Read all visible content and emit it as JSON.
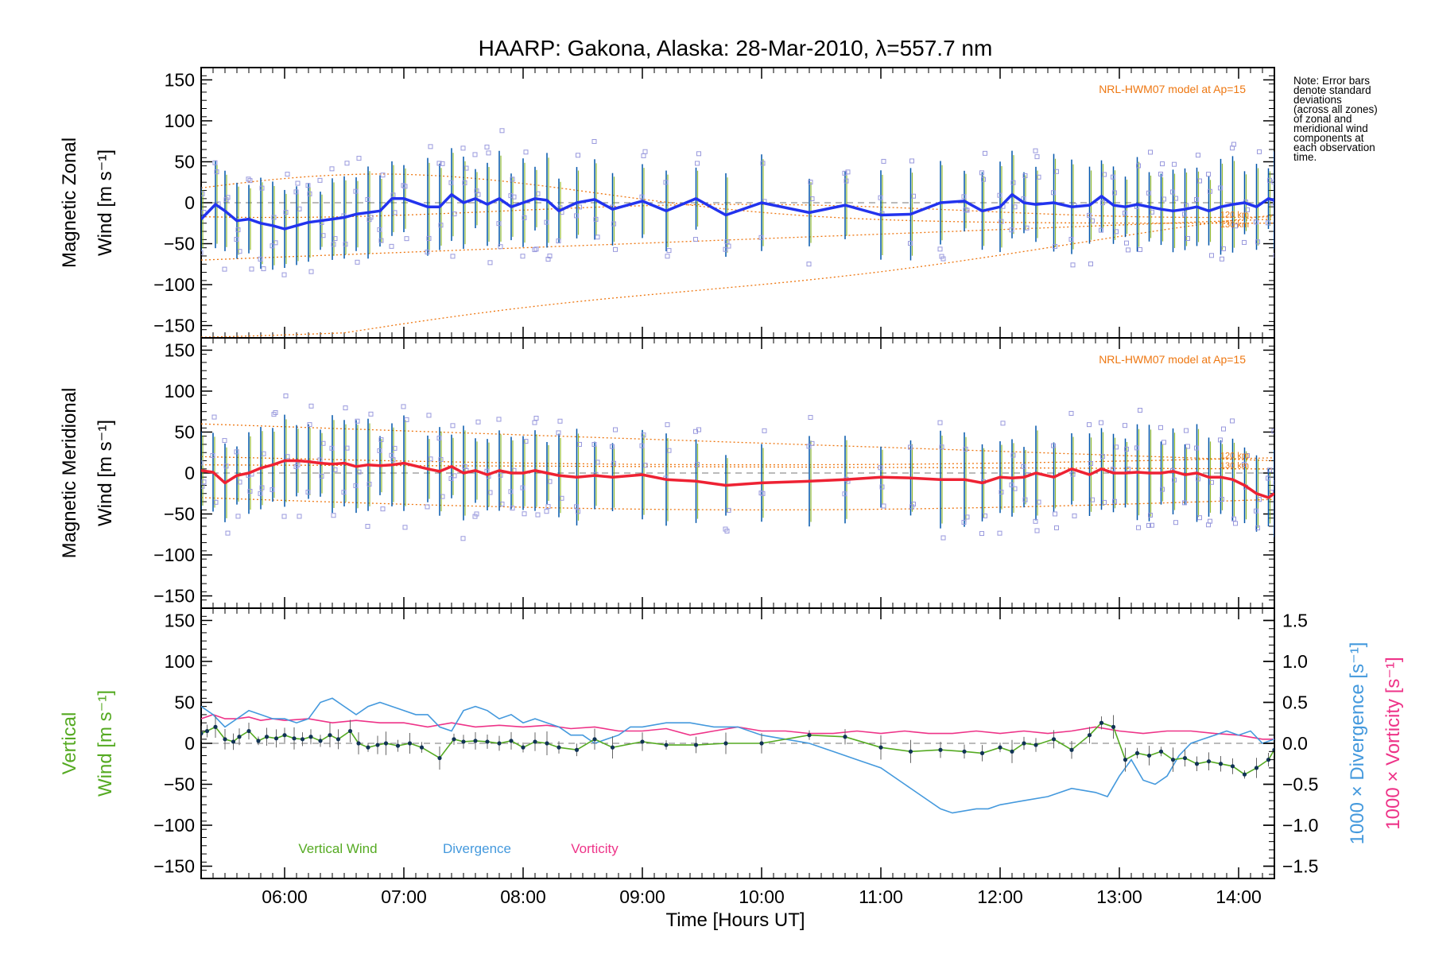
{
  "title": "HAARP: Gakona,  Alaska: 28-Mar-2010, λ=557.7 nm",
  "note_lines": [
    "Note: Error bars",
    "denote standard",
    "deviations",
    "(across all zones)",
    "of zonal and",
    "meridional wind",
    "components at",
    "each observation",
    "time."
  ],
  "x_axis": {
    "label": "Time [Hours UT]",
    "range": [
      5.3,
      14.3
    ],
    "ticks": [
      "06:00",
      "07:00",
      "08:00",
      "09:00",
      "10:00",
      "11:00",
      "12:00",
      "13:00",
      "14:00"
    ],
    "tick_values": [
      6,
      7,
      8,
      9,
      10,
      11,
      12,
      13,
      14
    ]
  },
  "colors": {
    "zonal": "#2233ee",
    "meridional": "#ee2233",
    "model": "#ee7711",
    "scatter": "#9999dd",
    "vertical": "#55aa22",
    "divergence": "#4499dd",
    "vorticity": "#ee3388",
    "errorbar_a": "#0055aa",
    "errorbar_b": "#77aa00"
  },
  "chart_data": [
    {
      "type": "line",
      "panel": "zonal",
      "ylabel_line1": "Magnetic Zonal",
      "ylabel_line2": "Wind [m s⁻¹]",
      "ylim": [
        -165,
        165
      ],
      "yticks": [
        -150,
        -100,
        -50,
        0,
        50,
        100,
        150
      ],
      "model_label": "NRL-HWM07 model at Ap=15",
      "model_alt_labels": [
        "120 km",
        "130 km"
      ],
      "series": [
        {
          "role": "mean-zonal-wind",
          "x": [
            5.3,
            5.42,
            5.5,
            5.6,
            5.7,
            5.8,
            5.9,
            6.0,
            6.1,
            6.2,
            6.3,
            6.4,
            6.5,
            6.6,
            6.7,
            6.8,
            6.9,
            7.0,
            7.2,
            7.3,
            7.4,
            7.5,
            7.6,
            7.7,
            7.8,
            7.9,
            8.0,
            8.1,
            8.2,
            8.3,
            8.45,
            8.6,
            8.75,
            9.0,
            9.2,
            9.45,
            9.7,
            10.0,
            10.4,
            10.7,
            11.0,
            11.25,
            11.5,
            11.7,
            11.85,
            12.0,
            12.1,
            12.2,
            12.3,
            12.45,
            12.6,
            12.75,
            12.85,
            12.95,
            13.05,
            13.15,
            13.25,
            13.35,
            13.45,
            13.55,
            13.65,
            13.75,
            13.85,
            13.95,
            14.05,
            14.15,
            14.25,
            14.3
          ],
          "y": [
            -20,
            -2,
            -10,
            -22,
            -20,
            -25,
            -28,
            -32,
            -28,
            -24,
            -22,
            -20,
            -18,
            -14,
            -12,
            -10,
            5,
            5,
            -5,
            -5,
            10,
            0,
            5,
            -2,
            5,
            -5,
            0,
            5,
            3,
            -10,
            0,
            4,
            -8,
            2,
            -10,
            5,
            -15,
            0,
            -12,
            -3,
            -15,
            -14,
            0,
            2,
            -10,
            -5,
            10,
            0,
            -2,
            0,
            -5,
            -3,
            8,
            -3,
            -5,
            -2,
            -5,
            -8,
            -10,
            -8,
            -5,
            -10,
            -5,
            -2,
            0,
            -5,
            5,
            3
          ]
        }
      ]
    },
    {
      "type": "line",
      "panel": "meridional",
      "ylabel_line1": "Magnetic Meridional",
      "ylabel_line2": "Wind [m s⁻¹]",
      "ylim": [
        -165,
        165
      ],
      "yticks": [
        -150,
        -100,
        -50,
        0,
        50,
        100,
        150
      ],
      "model_label": "NRL-HWM07 model at Ap=15",
      "model_alt_labels": [
        "120 km",
        "130 km"
      ],
      "series": [
        {
          "role": "mean-meridional-wind",
          "x": [
            5.3,
            5.4,
            5.5,
            5.6,
            5.7,
            5.8,
            5.9,
            6.0,
            6.1,
            6.2,
            6.3,
            6.4,
            6.5,
            6.6,
            6.7,
            6.8,
            6.9,
            7.0,
            7.2,
            7.3,
            7.4,
            7.5,
            7.6,
            7.7,
            7.8,
            7.9,
            8.0,
            8.1,
            8.2,
            8.3,
            8.45,
            8.6,
            8.75,
            9.0,
            9.2,
            9.45,
            9.7,
            10.0,
            10.4,
            10.7,
            11.0,
            11.25,
            11.5,
            11.7,
            11.85,
            12.0,
            12.1,
            12.2,
            12.3,
            12.45,
            12.6,
            12.75,
            12.85,
            12.95,
            13.05,
            13.15,
            13.25,
            13.35,
            13.45,
            13.55,
            13.65,
            13.75,
            13.85,
            13.95,
            14.05,
            14.15,
            14.25,
            14.3
          ],
          "y": [
            3,
            1,
            -12,
            -3,
            0,
            6,
            10,
            15,
            15,
            14,
            12,
            11,
            12,
            8,
            10,
            9,
            10,
            12,
            5,
            2,
            8,
            0,
            3,
            -2,
            3,
            0,
            0,
            3,
            0,
            -3,
            -5,
            -3,
            -5,
            -2,
            -8,
            -10,
            -15,
            -12,
            -10,
            -8,
            -5,
            -6,
            -8,
            -8,
            -12,
            -5,
            -6,
            -5,
            0,
            -5,
            5,
            -2,
            5,
            0,
            0,
            1,
            0,
            0,
            2,
            -2,
            0,
            -5,
            -5,
            -8,
            -15,
            -25,
            -30,
            -25
          ]
        }
      ]
    },
    {
      "type": "line",
      "panel": "vertical",
      "ylabel_line1": "Vertical",
      "ylabel_line2": "Wind [m s⁻¹]",
      "ylim": [
        -165,
        165
      ],
      "yticks": [
        -150,
        -100,
        -50,
        0,
        50,
        100,
        150
      ],
      "right_axes": [
        {
          "label": "1000 × Divergence [s⁻¹]",
          "ylim": [
            -1.65,
            1.65
          ],
          "ticks": [
            -1.5,
            -1.0,
            -0.5,
            0.0,
            0.5,
            1.0,
            1.5
          ],
          "tick_labels": [
            "−1.5",
            "−1.0",
            "−0.5",
            "0.0",
            "0.5",
            "1.0",
            "1.5"
          ]
        },
        {
          "label": "1000 × Vorticity [s⁻¹]"
        }
      ],
      "series": [
        {
          "name": "Vertical Wind",
          "axis": "left",
          "x": [
            5.3,
            5.35,
            5.42,
            5.5,
            5.57,
            5.62,
            5.7,
            5.78,
            5.85,
            5.93,
            6.0,
            6.08,
            6.15,
            6.22,
            6.3,
            6.38,
            6.45,
            6.55,
            6.62,
            6.7,
            6.78,
            6.85,
            6.95,
            7.05,
            7.15,
            7.3,
            7.42,
            7.5,
            7.6,
            7.7,
            7.8,
            7.9,
            8.0,
            8.1,
            8.2,
            8.3,
            8.45,
            8.6,
            8.75,
            9.0,
            9.2,
            9.45,
            9.7,
            10.0,
            10.4,
            10.7,
            11.0,
            11.25,
            11.5,
            11.7,
            11.85,
            12.0,
            12.1,
            12.2,
            12.3,
            12.45,
            12.6,
            12.75,
            12.85,
            12.95,
            13.05,
            13.15,
            13.25,
            13.35,
            13.45,
            13.55,
            13.65,
            13.75,
            13.85,
            13.95,
            14.05,
            14.15,
            14.25,
            14.3
          ],
          "y": [
            12,
            15,
            20,
            5,
            2,
            8,
            15,
            3,
            8,
            6,
            10,
            6,
            5,
            8,
            3,
            10,
            5,
            15,
            0,
            -5,
            -2,
            0,
            -3,
            0,
            -5,
            -18,
            5,
            2,
            3,
            2,
            0,
            3,
            -5,
            2,
            0,
            -5,
            -8,
            5,
            -5,
            2,
            -2,
            -2,
            0,
            0,
            10,
            8,
            -5,
            -10,
            -8,
            -10,
            -12,
            -5,
            -10,
            0,
            -2,
            5,
            -8,
            10,
            25,
            20,
            -20,
            -12,
            -15,
            -10,
            -20,
            -18,
            -25,
            -22,
            -25,
            -28,
            -38,
            -30,
            -20,
            -8
          ]
        },
        {
          "name": "Divergence",
          "axis": "right",
          "x": [
            5.3,
            5.4,
            5.5,
            5.6,
            5.7,
            5.8,
            5.9,
            6.0,
            6.1,
            6.2,
            6.3,
            6.4,
            6.5,
            6.6,
            6.7,
            6.8,
            6.9,
            7.0,
            7.1,
            7.2,
            7.3,
            7.4,
            7.5,
            7.6,
            7.7,
            7.8,
            7.9,
            8.0,
            8.1,
            8.2,
            8.3,
            8.4,
            8.5,
            8.6,
            8.7,
            8.8,
            8.9,
            9.0,
            9.2,
            9.4,
            9.6,
            9.8,
            10.0,
            10.2,
            10.4,
            10.6,
            10.8,
            11.0,
            11.2,
            11.4,
            11.5,
            11.6,
            11.8,
            11.9,
            12.0,
            12.2,
            12.4,
            12.6,
            12.8,
            12.9,
            13.0,
            13.1,
            13.2,
            13.3,
            13.4,
            13.5,
            13.6,
            13.7,
            13.8,
            13.9,
            14.0,
            14.1,
            14.2,
            14.3
          ],
          "y": [
            0.45,
            0.35,
            0.2,
            0.3,
            0.4,
            0.35,
            0.3,
            0.3,
            0.25,
            0.3,
            0.5,
            0.55,
            0.45,
            0.35,
            0.45,
            0.5,
            0.45,
            0.4,
            0.35,
            0.35,
            0.2,
            0.15,
            0.4,
            0.45,
            0.4,
            0.3,
            0.35,
            0.25,
            0.3,
            0.25,
            0.2,
            0.1,
            0.1,
            0.0,
            0.05,
            0.1,
            0.2,
            0.2,
            0.25,
            0.25,
            0.2,
            0.2,
            0.1,
            0.05,
            0.0,
            -0.1,
            -0.2,
            -0.3,
            -0.5,
            -0.7,
            -0.8,
            -0.85,
            -0.8,
            -0.8,
            -0.75,
            -0.7,
            -0.65,
            -0.55,
            -0.6,
            -0.65,
            -0.4,
            -0.2,
            -0.45,
            -0.5,
            -0.4,
            -0.15,
            0.0,
            0.05,
            0.1,
            0.15,
            0.1,
            0.15,
            0.0,
            0.05
          ]
        },
        {
          "name": "Vorticity",
          "axis": "right",
          "x": [
            5.3,
            5.4,
            5.5,
            5.6,
            5.7,
            5.8,
            5.9,
            6.0,
            6.2,
            6.4,
            6.6,
            6.8,
            7.0,
            7.2,
            7.4,
            7.6,
            7.8,
            8.0,
            8.2,
            8.4,
            8.6,
            8.8,
            9.0,
            9.2,
            9.4,
            9.6,
            9.8,
            10.0,
            10.2,
            10.4,
            10.6,
            10.8,
            11.0,
            11.2,
            11.4,
            11.6,
            11.8,
            12.0,
            12.2,
            12.4,
            12.6,
            12.8,
            13.0,
            13.2,
            13.4,
            13.6,
            13.8,
            14.0,
            14.2,
            14.3
          ],
          "y": [
            0.3,
            0.35,
            0.3,
            0.3,
            0.32,
            0.28,
            0.3,
            0.28,
            0.3,
            0.25,
            0.28,
            0.25,
            0.25,
            0.2,
            0.25,
            0.2,
            0.22,
            0.2,
            0.22,
            0.18,
            0.2,
            0.15,
            0.15,
            0.18,
            0.1,
            0.15,
            0.2,
            0.15,
            0.15,
            0.12,
            0.12,
            0.15,
            0.12,
            0.15,
            0.12,
            0.12,
            0.15,
            0.12,
            0.15,
            0.12,
            0.15,
            0.2,
            0.15,
            0.12,
            0.15,
            0.15,
            0.12,
            0.1,
            0.05,
            0.05
          ]
        }
      ]
    }
  ]
}
